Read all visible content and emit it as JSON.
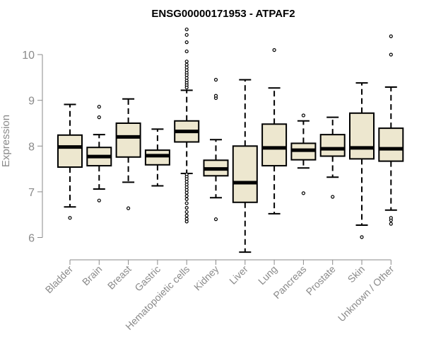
{
  "chart_data": {
    "type": "box",
    "title": "ENSG00000171953 - ATPAF2",
    "ylabel": "Expression",
    "xlabel": "",
    "ylim": [
      5.5,
      10.7
    ],
    "yticks": [
      6,
      7,
      8,
      9,
      10
    ],
    "box_fill": "#ede7cf",
    "categories": [
      "Bladder",
      "Brain",
      "Breast",
      "Gastric",
      "Hematopoietic cells",
      "Kidney",
      "Liver",
      "Lung",
      "Pancreas",
      "Prostate",
      "Skin",
      "Unknown / Other"
    ],
    "boxes": [
      {
        "whisker_low": 6.67,
        "q1": 7.54,
        "median": 7.98,
        "q3": 8.24,
        "whisker_high": 8.91,
        "outliers": [
          6.43
        ]
      },
      {
        "whisker_low": 7.06,
        "q1": 7.57,
        "median": 7.77,
        "q3": 7.97,
        "whisker_high": 8.25,
        "outliers": [
          6.81,
          8.63,
          8.86
        ]
      },
      {
        "whisker_low": 7.21,
        "q1": 7.76,
        "median": 8.2,
        "q3": 8.5,
        "whisker_high": 9.03,
        "outliers": [
          6.64
        ]
      },
      {
        "whisker_low": 7.13,
        "q1": 7.59,
        "median": 7.79,
        "q3": 7.91,
        "whisker_high": 8.37,
        "outliers": []
      },
      {
        "whisker_low": 7.4,
        "q1": 8.09,
        "median": 8.32,
        "q3": 8.55,
        "whisker_high": 9.22,
        "outliers": [
          10.55,
          10.43,
          10.27,
          10.07,
          9.85,
          9.78,
          9.72,
          9.66,
          9.6,
          9.55,
          9.49,
          9.43,
          9.38,
          9.33,
          9.28,
          7.38,
          7.33,
          7.28,
          7.22,
          7.16,
          7.1,
          7.04,
          6.98,
          6.91,
          6.84,
          6.75,
          6.65,
          6.56,
          6.48,
          6.41,
          6.35
        ]
      },
      {
        "whisker_low": 6.87,
        "q1": 7.35,
        "median": 7.5,
        "q3": 7.69,
        "whisker_high": 8.14,
        "outliers": [
          6.4,
          9.05,
          9.1,
          9.45
        ]
      },
      {
        "whisker_low": 5.68,
        "q1": 6.77,
        "median": 7.2,
        "q3": 8.0,
        "whisker_high": 9.45,
        "outliers": []
      },
      {
        "whisker_low": 6.52,
        "q1": 7.57,
        "median": 7.96,
        "q3": 8.48,
        "whisker_high": 9.27,
        "outliers": [
          10.1
        ]
      },
      {
        "whisker_low": 7.52,
        "q1": 7.7,
        "median": 7.91,
        "q3": 8.06,
        "whisker_high": 8.55,
        "outliers": [
          6.97,
          8.67
        ]
      },
      {
        "whisker_low": 7.32,
        "q1": 7.78,
        "median": 7.94,
        "q3": 8.25,
        "whisker_high": 8.63,
        "outliers": [
          6.89
        ]
      },
      {
        "whisker_low": 6.27,
        "q1": 7.72,
        "median": 7.96,
        "q3": 8.72,
        "whisker_high": 9.38,
        "outliers": [
          6.01
        ]
      },
      {
        "whisker_low": 6.6,
        "q1": 7.67,
        "median": 7.94,
        "q3": 8.39,
        "whisker_high": 9.29,
        "outliers": [
          6.3,
          6.38,
          6.43,
          10.0,
          10.4
        ]
      }
    ]
  }
}
